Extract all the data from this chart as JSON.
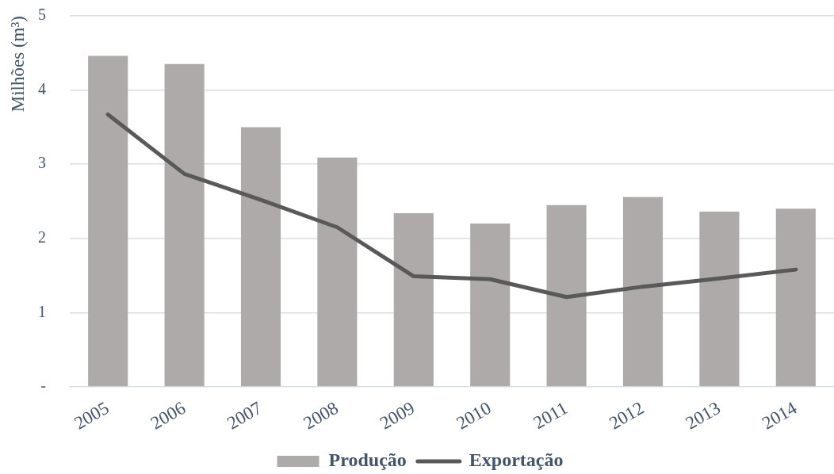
{
  "chart_data": {
    "type": "bar",
    "ylabel": "Milhões (m³)",
    "categories": [
      "2005",
      "2006",
      "2007",
      "2008",
      "2009",
      "2010",
      "2011",
      "2012",
      "2013",
      "2014"
    ],
    "series": [
      {
        "name": "Produção",
        "color": "#aeaaaa",
        "values": [
          4.46,
          4.35,
          3.5,
          3.09,
          2.34,
          2.2,
          2.45,
          2.56,
          2.36,
          2.4
        ]
      },
      {
        "name": "Exportação",
        "type": "line",
        "color": "#595959",
        "values": [
          3.67,
          2.87,
          2.52,
          2.15,
          1.49,
          1.45,
          1.21,
          1.35,
          1.46,
          1.58
        ]
      }
    ],
    "ylim": [
      0,
      5
    ],
    "yticks": [
      {
        "value": 0,
        "label": "-"
      },
      1,
      2,
      3,
      4,
      5
    ],
    "grid": "y",
    "legend": "bottom",
    "marker": "none"
  }
}
